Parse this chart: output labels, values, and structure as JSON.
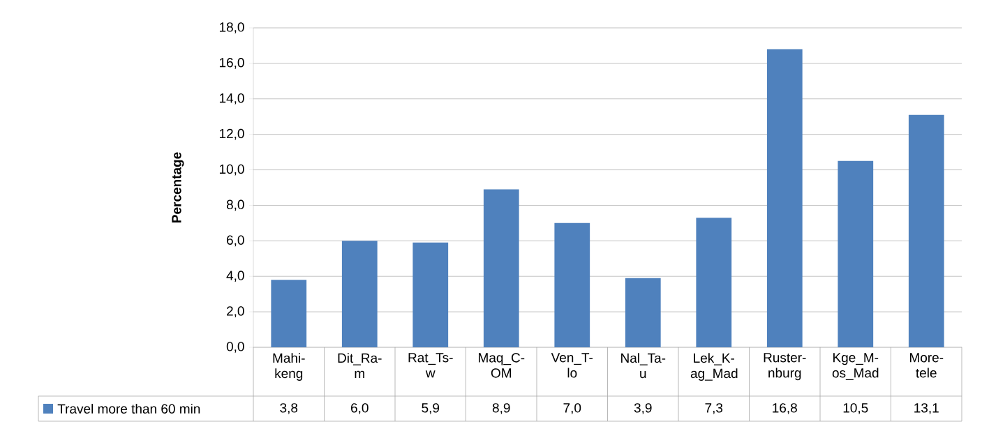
{
  "chart_data": {
    "type": "bar",
    "ylabel": "Percentage",
    "categories": [
      "Mahi-keng",
      "Dit_Ra-m",
      "Rat_Ts-w",
      "Maq_C-OM",
      "Ven_T-lo",
      "Nal_Ta-u",
      "Lek_K-ag_Mad",
      "Ruster-nburg",
      "Kge_M-os_Mad",
      "More-tele"
    ],
    "series": [
      {
        "name": "Travel more than 60 min",
        "color": "#4f81bd",
        "values": [
          3.8,
          6.0,
          5.9,
          8.9,
          7.0,
          3.9,
          7.3,
          16.8,
          10.5,
          13.1
        ],
        "value_labels": [
          "3,8",
          "6,0",
          "5,9",
          "8,9",
          "7,0",
          "3,9",
          "7,3",
          "16,8",
          "10,5",
          "13,1"
        ]
      }
    ],
    "ylim": [
      0,
      18
    ],
    "yticks": [
      {
        "value": 0,
        "label": "0,0"
      },
      {
        "value": 2,
        "label": "2,0"
      },
      {
        "value": 4,
        "label": "4,0"
      },
      {
        "value": 6,
        "label": "6,0"
      },
      {
        "value": 8,
        "label": "8,0"
      },
      {
        "value": 10,
        "label": "10,0"
      },
      {
        "value": 12,
        "label": "12,0"
      },
      {
        "value": 14,
        "label": "14,0"
      },
      {
        "value": 16,
        "label": "16,0"
      },
      {
        "value": 18,
        "label": "18,0"
      }
    ],
    "grid": "y",
    "legend": "bottom"
  }
}
